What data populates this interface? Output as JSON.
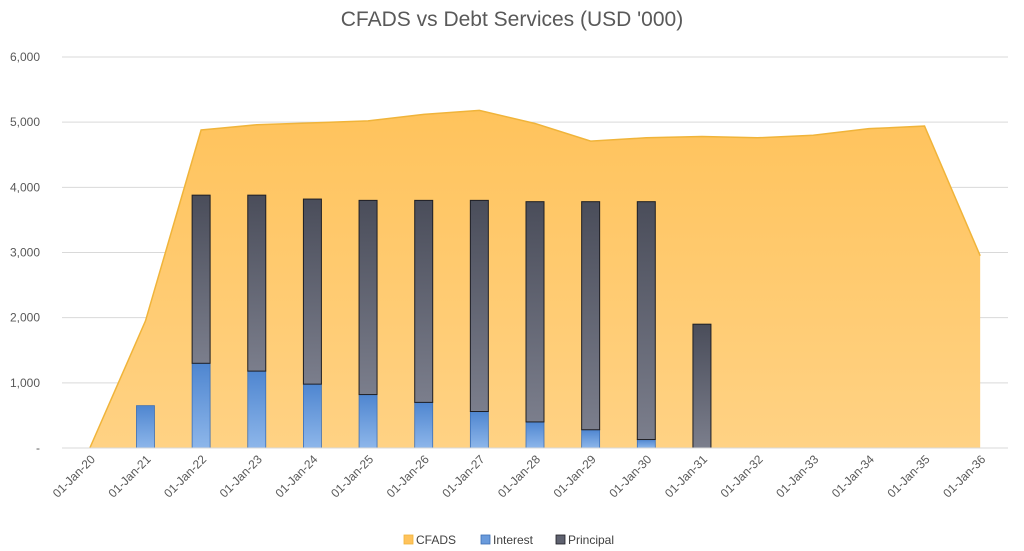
{
  "chart_data": {
    "type": "bar",
    "title": "CFADS vs Debt Services (USD '000)",
    "xlabel": "",
    "ylabel": "",
    "categories": [
      "01-Jan-20",
      "01-Jan-21",
      "01-Jan-22",
      "01-Jan-23",
      "01-Jan-24",
      "01-Jan-25",
      "01-Jan-26",
      "01-Jan-27",
      "01-Jan-28",
      "01-Jan-29",
      "01-Jan-30",
      "01-Jan-31",
      "01-Jan-32",
      "01-Jan-33",
      "01-Jan-34",
      "01-Jan-35",
      "01-Jan-36"
    ],
    "ylim": [
      0,
      6000
    ],
    "yticks": [
      0,
      1000,
      2000,
      3000,
      4000,
      5000,
      6000
    ],
    "ytick_labels": [
      "-",
      "1,000",
      "2,000",
      "3,000",
      "4,000",
      "5,000",
      "6,000"
    ],
    "grid": true,
    "legend_position": "bottom",
    "series": [
      {
        "name": "CFADS",
        "kind": "area",
        "color": "#FFC35C",
        "line_color": "#F0B43A",
        "values": [
          0,
          1950,
          4880,
          4960,
          4990,
          5020,
          5120,
          5180,
          4980,
          4710,
          4760,
          4780,
          4760,
          4800,
          4900,
          4940,
          2950
        ]
      },
      {
        "name": "Interest",
        "kind": "stacked-bar",
        "color": "#6A9BDC",
        "values": [
          0,
          650,
          1300,
          1180,
          980,
          820,
          700,
          560,
          400,
          280,
          130,
          0,
          0,
          0,
          0,
          0,
          0
        ]
      },
      {
        "name": "Principal",
        "kind": "stacked-bar",
        "color": "#5F6270",
        "values": [
          0,
          0,
          2580,
          2700,
          2840,
          2980,
          3100,
          3240,
          3380,
          3500,
          3650,
          1900,
          0,
          0,
          0,
          0,
          0
        ]
      }
    ]
  }
}
